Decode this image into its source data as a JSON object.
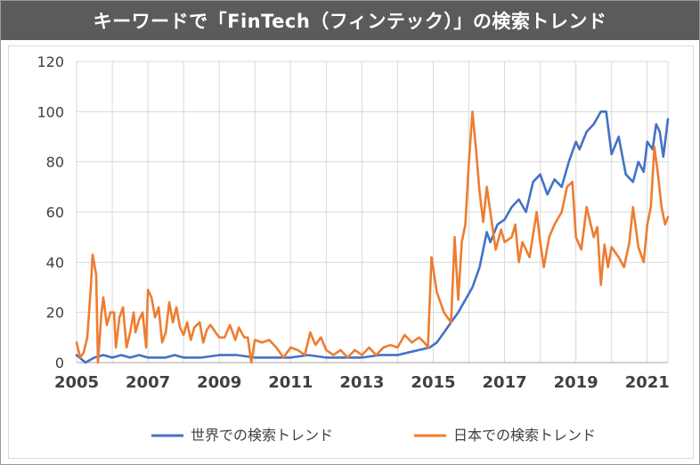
{
  "title": "キーワードで「FinTech（フィンテック）」の検索トレンド",
  "colors": {
    "world": "#4472c4",
    "japan": "#ed7d31",
    "grid": "#d9d9d9",
    "title_bg": "#5b5b5b"
  },
  "chart_data": {
    "type": "line",
    "title": "キーワードで「FinTech（フィンテック）」の検索トレンド",
    "xlabel": "",
    "ylabel": "",
    "xlim": [
      2005,
      2021.58
    ],
    "ylim": [
      0,
      120
    ],
    "y_ticks": [
      "0",
      "20",
      "40",
      "60",
      "80",
      "100",
      "120"
    ],
    "x_ticks": [
      "2005",
      "2007",
      "2009",
      "2011",
      "2013",
      "2015",
      "2017",
      "2019",
      "2021"
    ],
    "grid": true,
    "legend_position": "bottom",
    "series": [
      {
        "name": "世界での検索トレンド",
        "color": "#4472c4",
        "points": [
          [
            2005.0,
            3
          ],
          [
            2005.25,
            0
          ],
          [
            2005.5,
            2
          ],
          [
            2005.75,
            3
          ],
          [
            2006.0,
            2
          ],
          [
            2006.25,
            3
          ],
          [
            2006.5,
            2
          ],
          [
            2006.75,
            3
          ],
          [
            2007.0,
            2
          ],
          [
            2007.25,
            2
          ],
          [
            2007.5,
            2
          ],
          [
            2007.75,
            3
          ],
          [
            2008.0,
            2
          ],
          [
            2008.5,
            2
          ],
          [
            2009.0,
            3
          ],
          [
            2009.5,
            3
          ],
          [
            2010.0,
            2
          ],
          [
            2010.5,
            2
          ],
          [
            2011.0,
            2
          ],
          [
            2011.5,
            3
          ],
          [
            2012.0,
            2
          ],
          [
            2012.5,
            2
          ],
          [
            2013.0,
            2
          ],
          [
            2013.5,
            3
          ],
          [
            2014.0,
            3
          ],
          [
            2014.3,
            4
          ],
          [
            2014.6,
            5
          ],
          [
            2014.9,
            6
          ],
          [
            2015.1,
            8
          ],
          [
            2015.3,
            12
          ],
          [
            2015.5,
            16
          ],
          [
            2015.7,
            20
          ],
          [
            2015.9,
            25
          ],
          [
            2016.1,
            30
          ],
          [
            2016.3,
            38
          ],
          [
            2016.5,
            52
          ],
          [
            2016.6,
            48
          ],
          [
            2016.8,
            55
          ],
          [
            2017.0,
            57
          ],
          [
            2017.2,
            62
          ],
          [
            2017.4,
            65
          ],
          [
            2017.6,
            60
          ],
          [
            2017.8,
            72
          ],
          [
            2018.0,
            75
          ],
          [
            2018.2,
            67
          ],
          [
            2018.4,
            73
          ],
          [
            2018.6,
            70
          ],
          [
            2018.8,
            80
          ],
          [
            2019.0,
            88
          ],
          [
            2019.1,
            85
          ],
          [
            2019.3,
            92
          ],
          [
            2019.5,
            95
          ],
          [
            2019.7,
            100
          ],
          [
            2019.85,
            100
          ],
          [
            2020.0,
            83
          ],
          [
            2020.2,
            90
          ],
          [
            2020.4,
            75
          ],
          [
            2020.6,
            72
          ],
          [
            2020.75,
            80
          ],
          [
            2020.9,
            76
          ],
          [
            2021.0,
            88
          ],
          [
            2021.15,
            85
          ],
          [
            2021.25,
            95
          ],
          [
            2021.35,
            92
          ],
          [
            2021.45,
            82
          ],
          [
            2021.58,
            97
          ]
        ]
      },
      {
        "name": "日本での検索トレンド",
        "color": "#ed7d31",
        "points": [
          [
            2005.0,
            8
          ],
          [
            2005.1,
            2
          ],
          [
            2005.2,
            4
          ],
          [
            2005.3,
            10
          ],
          [
            2005.4,
            30
          ],
          [
            2005.45,
            43
          ],
          [
            2005.55,
            35
          ],
          [
            2005.6,
            0
          ],
          [
            2005.7,
            20
          ],
          [
            2005.75,
            26
          ],
          [
            2005.85,
            15
          ],
          [
            2005.95,
            20
          ],
          [
            2006.05,
            20
          ],
          [
            2006.1,
            6
          ],
          [
            2006.2,
            18
          ],
          [
            2006.3,
            22
          ],
          [
            2006.4,
            6
          ],
          [
            2006.5,
            12
          ],
          [
            2006.6,
            20
          ],
          [
            2006.65,
            12
          ],
          [
            2006.75,
            17
          ],
          [
            2006.85,
            20
          ],
          [
            2006.95,
            6
          ],
          [
            2007.0,
            29
          ],
          [
            2007.1,
            26
          ],
          [
            2007.2,
            18
          ],
          [
            2007.3,
            22
          ],
          [
            2007.4,
            8
          ],
          [
            2007.5,
            12
          ],
          [
            2007.6,
            24
          ],
          [
            2007.7,
            16
          ],
          [
            2007.8,
            22
          ],
          [
            2007.9,
            14
          ],
          [
            2008.0,
            11
          ],
          [
            2008.1,
            16
          ],
          [
            2008.2,
            9
          ],
          [
            2008.3,
            14
          ],
          [
            2008.45,
            16
          ],
          [
            2008.55,
            8
          ],
          [
            2008.65,
            13
          ],
          [
            2008.75,
            15
          ],
          [
            2008.9,
            12
          ],
          [
            2009.0,
            10
          ],
          [
            2009.15,
            10
          ],
          [
            2009.3,
            15
          ],
          [
            2009.45,
            9
          ],
          [
            2009.55,
            14
          ],
          [
            2009.7,
            10
          ],
          [
            2009.8,
            10
          ],
          [
            2009.9,
            0
          ],
          [
            2010.0,
            9
          ],
          [
            2010.2,
            8
          ],
          [
            2010.4,
            9
          ],
          [
            2010.6,
            6
          ],
          [
            2010.8,
            2
          ],
          [
            2011.0,
            6
          ],
          [
            2011.2,
            5
          ],
          [
            2011.4,
            3
          ],
          [
            2011.55,
            12
          ],
          [
            2011.7,
            7
          ],
          [
            2011.85,
            10
          ],
          [
            2012.0,
            5
          ],
          [
            2012.2,
            3
          ],
          [
            2012.4,
            5
          ],
          [
            2012.6,
            2
          ],
          [
            2012.8,
            5
          ],
          [
            2013.0,
            3
          ],
          [
            2013.2,
            6
          ],
          [
            2013.4,
            3
          ],
          [
            2013.6,
            6
          ],
          [
            2013.8,
            7
          ],
          [
            2014.0,
            6
          ],
          [
            2014.2,
            11
          ],
          [
            2014.4,
            8
          ],
          [
            2014.6,
            10
          ],
          [
            2014.75,
            8
          ],
          [
            2014.85,
            6
          ],
          [
            2014.95,
            42
          ],
          [
            2015.1,
            28
          ],
          [
            2015.3,
            20
          ],
          [
            2015.5,
            16
          ],
          [
            2015.6,
            50
          ],
          [
            2015.7,
            25
          ],
          [
            2015.8,
            48
          ],
          [
            2015.9,
            55
          ],
          [
            2016.0,
            80
          ],
          [
            2016.1,
            100
          ],
          [
            2016.2,
            85
          ],
          [
            2016.3,
            68
          ],
          [
            2016.4,
            56
          ],
          [
            2016.5,
            70
          ],
          [
            2016.6,
            60
          ],
          [
            2016.75,
            45
          ],
          [
            2016.9,
            53
          ],
          [
            2017.0,
            48
          ],
          [
            2017.2,
            50
          ],
          [
            2017.3,
            55
          ],
          [
            2017.4,
            40
          ],
          [
            2017.5,
            48
          ],
          [
            2017.7,
            42
          ],
          [
            2017.9,
            60
          ],
          [
            2018.0,
            48
          ],
          [
            2018.1,
            38
          ],
          [
            2018.25,
            50
          ],
          [
            2018.4,
            55
          ],
          [
            2018.6,
            60
          ],
          [
            2018.75,
            70
          ],
          [
            2018.9,
            72
          ],
          [
            2019.0,
            50
          ],
          [
            2019.15,
            45
          ],
          [
            2019.3,
            62
          ],
          [
            2019.5,
            50
          ],
          [
            2019.6,
            54
          ],
          [
            2019.7,
            31
          ],
          [
            2019.8,
            47
          ],
          [
            2019.9,
            38
          ],
          [
            2020.0,
            46
          ],
          [
            2020.2,
            42
          ],
          [
            2020.35,
            38
          ],
          [
            2020.5,
            48
          ],
          [
            2020.6,
            62
          ],
          [
            2020.75,
            46
          ],
          [
            2020.9,
            40
          ],
          [
            2021.0,
            55
          ],
          [
            2021.1,
            62
          ],
          [
            2021.2,
            86
          ],
          [
            2021.3,
            75
          ],
          [
            2021.4,
            62
          ],
          [
            2021.5,
            55
          ],
          [
            2021.58,
            58
          ]
        ]
      }
    ]
  }
}
